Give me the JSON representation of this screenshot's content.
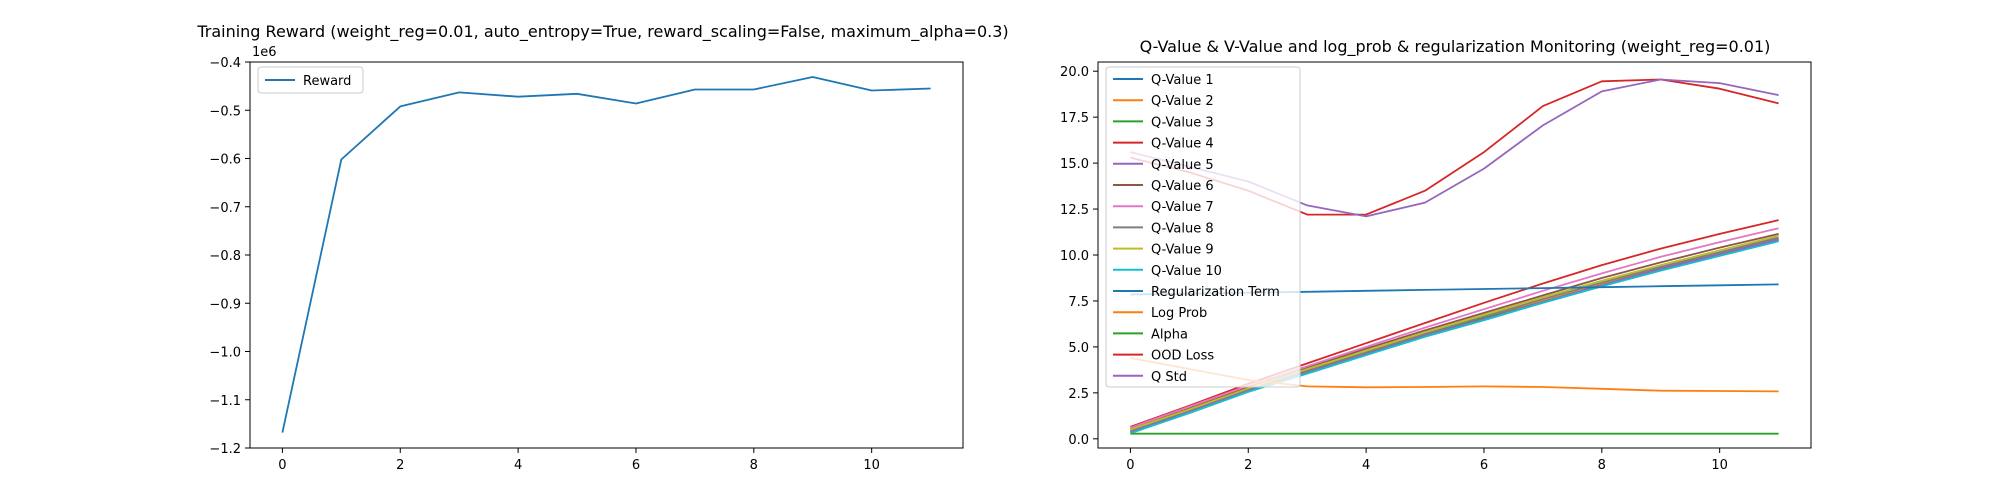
{
  "chart_data": [
    {
      "type": "line",
      "title": "Training Reward (weight_reg=0.01, auto_entropy=True, reward_scaling=False, maximum_alpha=0.3)",
      "xlabel": "",
      "ylabel": "",
      "y_scale_label": "1e6",
      "xlim": [
        -0.55,
        11.55
      ],
      "ylim": [
        -1.2,
        -0.4
      ],
      "x_ticks": [
        "0",
        "2",
        "4",
        "6",
        "8",
        "10"
      ],
      "x_tick_values": [
        0,
        2,
        4,
        6,
        8,
        10
      ],
      "y_ticks": [
        "−1.2",
        "−1.1",
        "−1.0",
        "−0.9",
        "−0.8",
        "−0.7",
        "−0.6",
        "−0.5",
        "−0.4"
      ],
      "y_tick_values": [
        -1.2,
        -1.1,
        -1.0,
        -0.9,
        -0.8,
        -0.7,
        -0.6,
        -0.5,
        -0.4
      ],
      "legend_position": "upper-left",
      "grid": false,
      "x": [
        0,
        1,
        2,
        3,
        4,
        5,
        6,
        7,
        8,
        9,
        10,
        11
      ],
      "series": [
        {
          "name": "Reward",
          "color": "#1f77b4",
          "values": [
            -1.168,
            -0.602,
            -0.492,
            -0.463,
            -0.472,
            -0.466,
            -0.486,
            -0.457,
            -0.457,
            -0.431,
            -0.459,
            -0.455
          ]
        }
      ]
    },
    {
      "type": "line",
      "title": "Q-Value & V-Value and log_prob & regularization Monitoring (weight_reg=0.01)",
      "xlabel": "",
      "ylabel": "",
      "xlim": [
        -0.55,
        11.55
      ],
      "ylim": [
        -0.5,
        20.5
      ],
      "x_ticks": [
        "0",
        "2",
        "4",
        "6",
        "8",
        "10"
      ],
      "x_tick_values": [
        0,
        2,
        4,
        6,
        8,
        10
      ],
      "y_ticks": [
        "0.0",
        "2.5",
        "5.0",
        "7.5",
        "10.0",
        "12.5",
        "15.0",
        "17.5",
        "20.0"
      ],
      "y_tick_values": [
        0,
        2.5,
        5,
        7.5,
        10,
        12.5,
        15,
        17.5,
        20
      ],
      "legend_position": "upper-left",
      "grid": false,
      "x": [
        0,
        1,
        2,
        3,
        4,
        5,
        6,
        7,
        8,
        9,
        10,
        11
      ],
      "series": [
        {
          "name": "Q-Value 1",
          "color": "#1f77b4",
          "values": [
            0.35,
            1.5,
            2.6,
            3.6,
            4.6,
            5.6,
            6.5,
            7.4,
            8.3,
            9.2,
            10.0,
            10.8
          ]
        },
        {
          "name": "Q-Value 2",
          "color": "#ff7f0e",
          "values": [
            0.5,
            1.6,
            2.7,
            3.7,
            4.7,
            5.7,
            6.6,
            7.5,
            8.4,
            9.3,
            10.1,
            10.9
          ]
        },
        {
          "name": "Q-Value 3",
          "color": "#2ca02c",
          "values": [
            0.45,
            1.55,
            2.65,
            3.65,
            4.65,
            5.65,
            6.55,
            7.45,
            8.35,
            9.25,
            10.05,
            10.85
          ]
        },
        {
          "name": "Q-Value 4",
          "color": "#d62728",
          "values": [
            0.65,
            1.8,
            3.0,
            4.1,
            5.2,
            6.3,
            7.4,
            8.45,
            9.45,
            10.35,
            11.15,
            11.9
          ]
        },
        {
          "name": "Q-Value 5",
          "color": "#9467bd",
          "values": [
            0.4,
            1.5,
            2.6,
            3.6,
            4.6,
            5.6,
            6.5,
            7.45,
            8.35,
            9.25,
            10.05,
            10.85
          ]
        },
        {
          "name": "Q-Value 6",
          "color": "#8c564b",
          "values": [
            0.55,
            1.65,
            2.8,
            3.85,
            4.9,
            5.9,
            6.85,
            7.8,
            8.75,
            9.6,
            10.4,
            11.15
          ]
        },
        {
          "name": "Q-Value 7",
          "color": "#e377c2",
          "values": [
            0.6,
            1.75,
            2.9,
            3.95,
            5.0,
            6.05,
            7.05,
            8.05,
            9.0,
            9.9,
            10.7,
            11.45
          ]
        },
        {
          "name": "Q-Value 8",
          "color": "#7f7f7f",
          "values": [
            0.45,
            1.55,
            2.7,
            3.7,
            4.7,
            5.7,
            6.65,
            7.6,
            8.5,
            9.35,
            10.15,
            10.95
          ]
        },
        {
          "name": "Q-Value 9",
          "color": "#bcbd22",
          "values": [
            0.5,
            1.6,
            2.75,
            3.8,
            4.8,
            5.8,
            6.75,
            7.7,
            8.6,
            9.45,
            10.25,
            11.05
          ]
        },
        {
          "name": "Q-Value 10",
          "color": "#17becf",
          "values": [
            0.3,
            1.4,
            2.55,
            3.55,
            4.55,
            5.55,
            6.45,
            7.4,
            8.3,
            9.15,
            9.95,
            10.75
          ]
        },
        {
          "name": "Regularization Term",
          "color": "#1f77b4",
          "values": [
            7.85,
            7.9,
            7.95,
            8.0,
            8.05,
            8.1,
            8.15,
            8.2,
            8.25,
            8.3,
            8.35,
            8.4
          ]
        },
        {
          "name": "Log Prob",
          "color": "#ff7f0e",
          "values": [
            4.4,
            3.8,
            3.2,
            2.85,
            2.8,
            2.82,
            2.85,
            2.82,
            2.72,
            2.62,
            2.6,
            2.58
          ]
        },
        {
          "name": "Alpha",
          "color": "#2ca02c",
          "values": [
            0.28,
            0.28,
            0.28,
            0.28,
            0.28,
            0.28,
            0.28,
            0.28,
            0.28,
            0.28,
            0.28,
            0.28
          ]
        },
        {
          "name": "OOD Loss",
          "color": "#d62728",
          "values": [
            15.3,
            14.5,
            13.5,
            12.2,
            12.2,
            13.5,
            15.6,
            18.1,
            19.45,
            19.55,
            19.05,
            18.25
          ]
        },
        {
          "name": "Q Std",
          "color": "#9467bd",
          "values": [
            15.6,
            14.8,
            14.0,
            12.7,
            12.1,
            12.85,
            14.7,
            17.05,
            18.9,
            19.55,
            19.35,
            18.7
          ]
        }
      ]
    }
  ]
}
